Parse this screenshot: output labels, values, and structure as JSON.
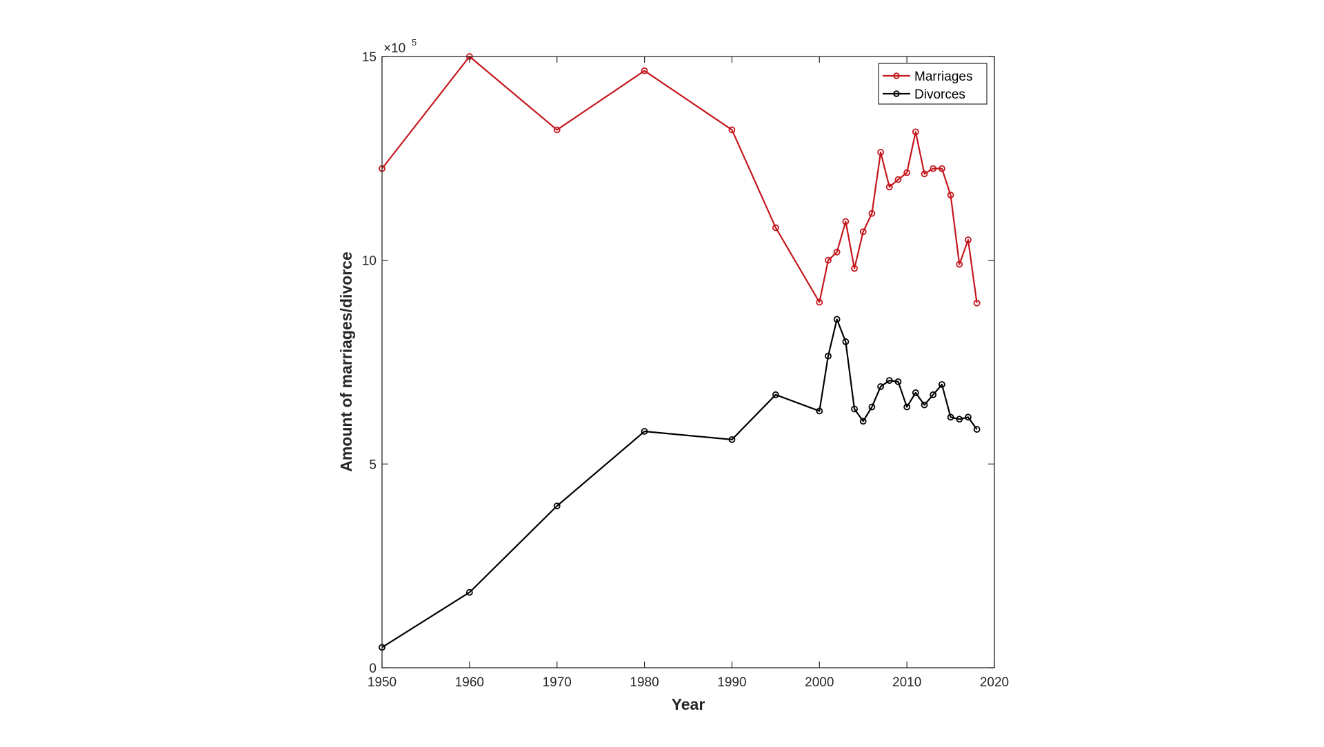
{
  "chart_data": {
    "type": "line",
    "xlabel": "Year",
    "ylabel": "Amount of marriages/divorce",
    "y_exponent_label": "×10",
    "y_exponent_power": "5",
    "xlim": [
      1950,
      2020
    ],
    "ylim": [
      0,
      15
    ],
    "x_ticks": [
      1950,
      1960,
      1970,
      1980,
      1990,
      2000,
      2010,
      2020
    ],
    "y_ticks": [
      0,
      5,
      10,
      15
    ],
    "grid": false,
    "legend_position": "top-right",
    "series": [
      {
        "name": "Marriages",
        "color": "#c4161c",
        "x": [
          1950,
          1960,
          1970,
          1980,
          1990,
          1995,
          2000,
          2001,
          2002,
          2003,
          2004,
          2005,
          2006,
          2007,
          2008,
          2009,
          2010,
          2011,
          2012,
          2013,
          2014,
          2015,
          2016,
          2017,
          2018
        ],
        "y": [
          12.25,
          15.0,
          13.2,
          14.65,
          13.2,
          10.8,
          8.97,
          10.0,
          10.2,
          10.95,
          9.8,
          10.7,
          11.15,
          12.65,
          11.8,
          11.98,
          12.15,
          13.15,
          12.12,
          12.25,
          12.25,
          11.6,
          9.9,
          10.5,
          8.95
        ]
      },
      {
        "name": "Divorces",
        "color": "#000000",
        "x": [
          1950,
          1960,
          1970,
          1980,
          1990,
          1995,
          2000,
          2001,
          2002,
          2003,
          2004,
          2005,
          2006,
          2007,
          2008,
          2009,
          2010,
          2011,
          2012,
          2013,
          2014,
          2015,
          2016,
          2017,
          2018
        ],
        "y": [
          0.5,
          1.85,
          3.97,
          5.8,
          5.6,
          6.7,
          6.3,
          7.65,
          8.55,
          8.0,
          6.35,
          6.05,
          6.4,
          6.9,
          7.05,
          7.02,
          6.4,
          6.75,
          6.45,
          6.7,
          6.95,
          6.15,
          6.1,
          6.15,
          5.85
        ]
      }
    ]
  }
}
